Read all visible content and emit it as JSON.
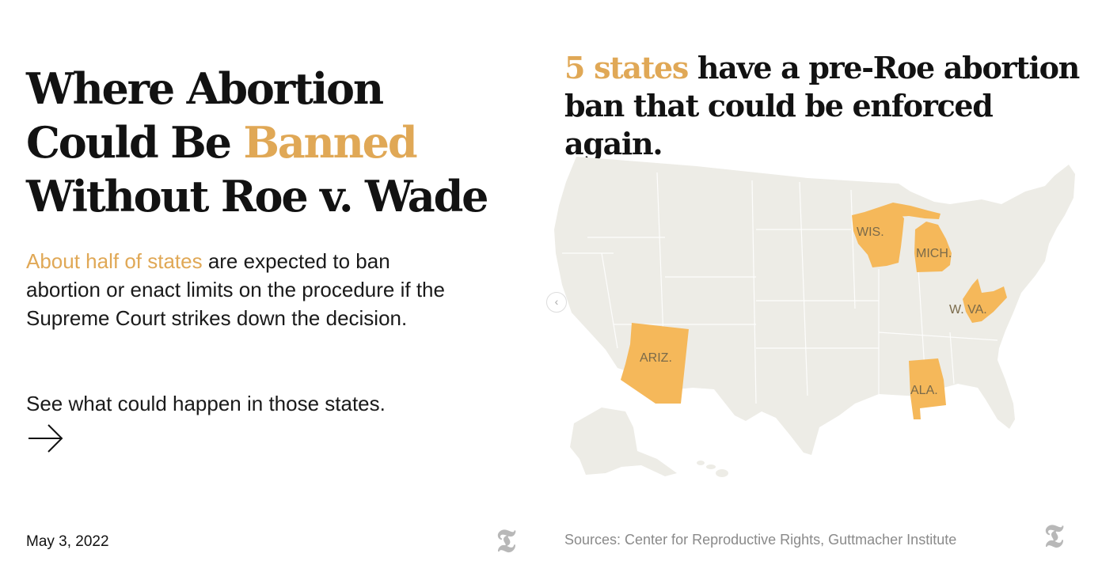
{
  "story": {
    "headline_before": "Where Abortion Could Be ",
    "headline_accent": "Banned",
    "headline_after": " Without Roe v. Wade",
    "summary_accent": "About half of states",
    "summary_rest": " are expected to ban abortion or enact limits on the procedure if the Supreme Court strikes down the decision.",
    "cta": "See what could happen in those states.",
    "cta_arrow": "→",
    "date": "May 3, 2022"
  },
  "map": {
    "heading_accent": "5 states",
    "heading_rest": " have a pre-Roe abortion ban that could be enforced again.",
    "states": [
      {
        "abbr": "WIS.",
        "highlighted": true
      },
      {
        "abbr": "MICH.",
        "highlighted": true
      },
      {
        "abbr": "W. VA.",
        "highlighted": true
      },
      {
        "abbr": "ARIZ.",
        "highlighted": true
      },
      {
        "abbr": "ALA.",
        "highlighted": true
      }
    ],
    "sources": "Sources: Center for Reproductive Rights, Guttmacher Institute",
    "carousel_prev": "‹"
  },
  "branding": {
    "logo_glyph": "𝕿"
  },
  "colors": {
    "accent": "#E0A856",
    "highlight_fill": "#F5B85A",
    "land_fill": "#EDECE6",
    "border_line": "#FFFFFF",
    "text": "#121212",
    "muted": "#8a8a8a"
  }
}
